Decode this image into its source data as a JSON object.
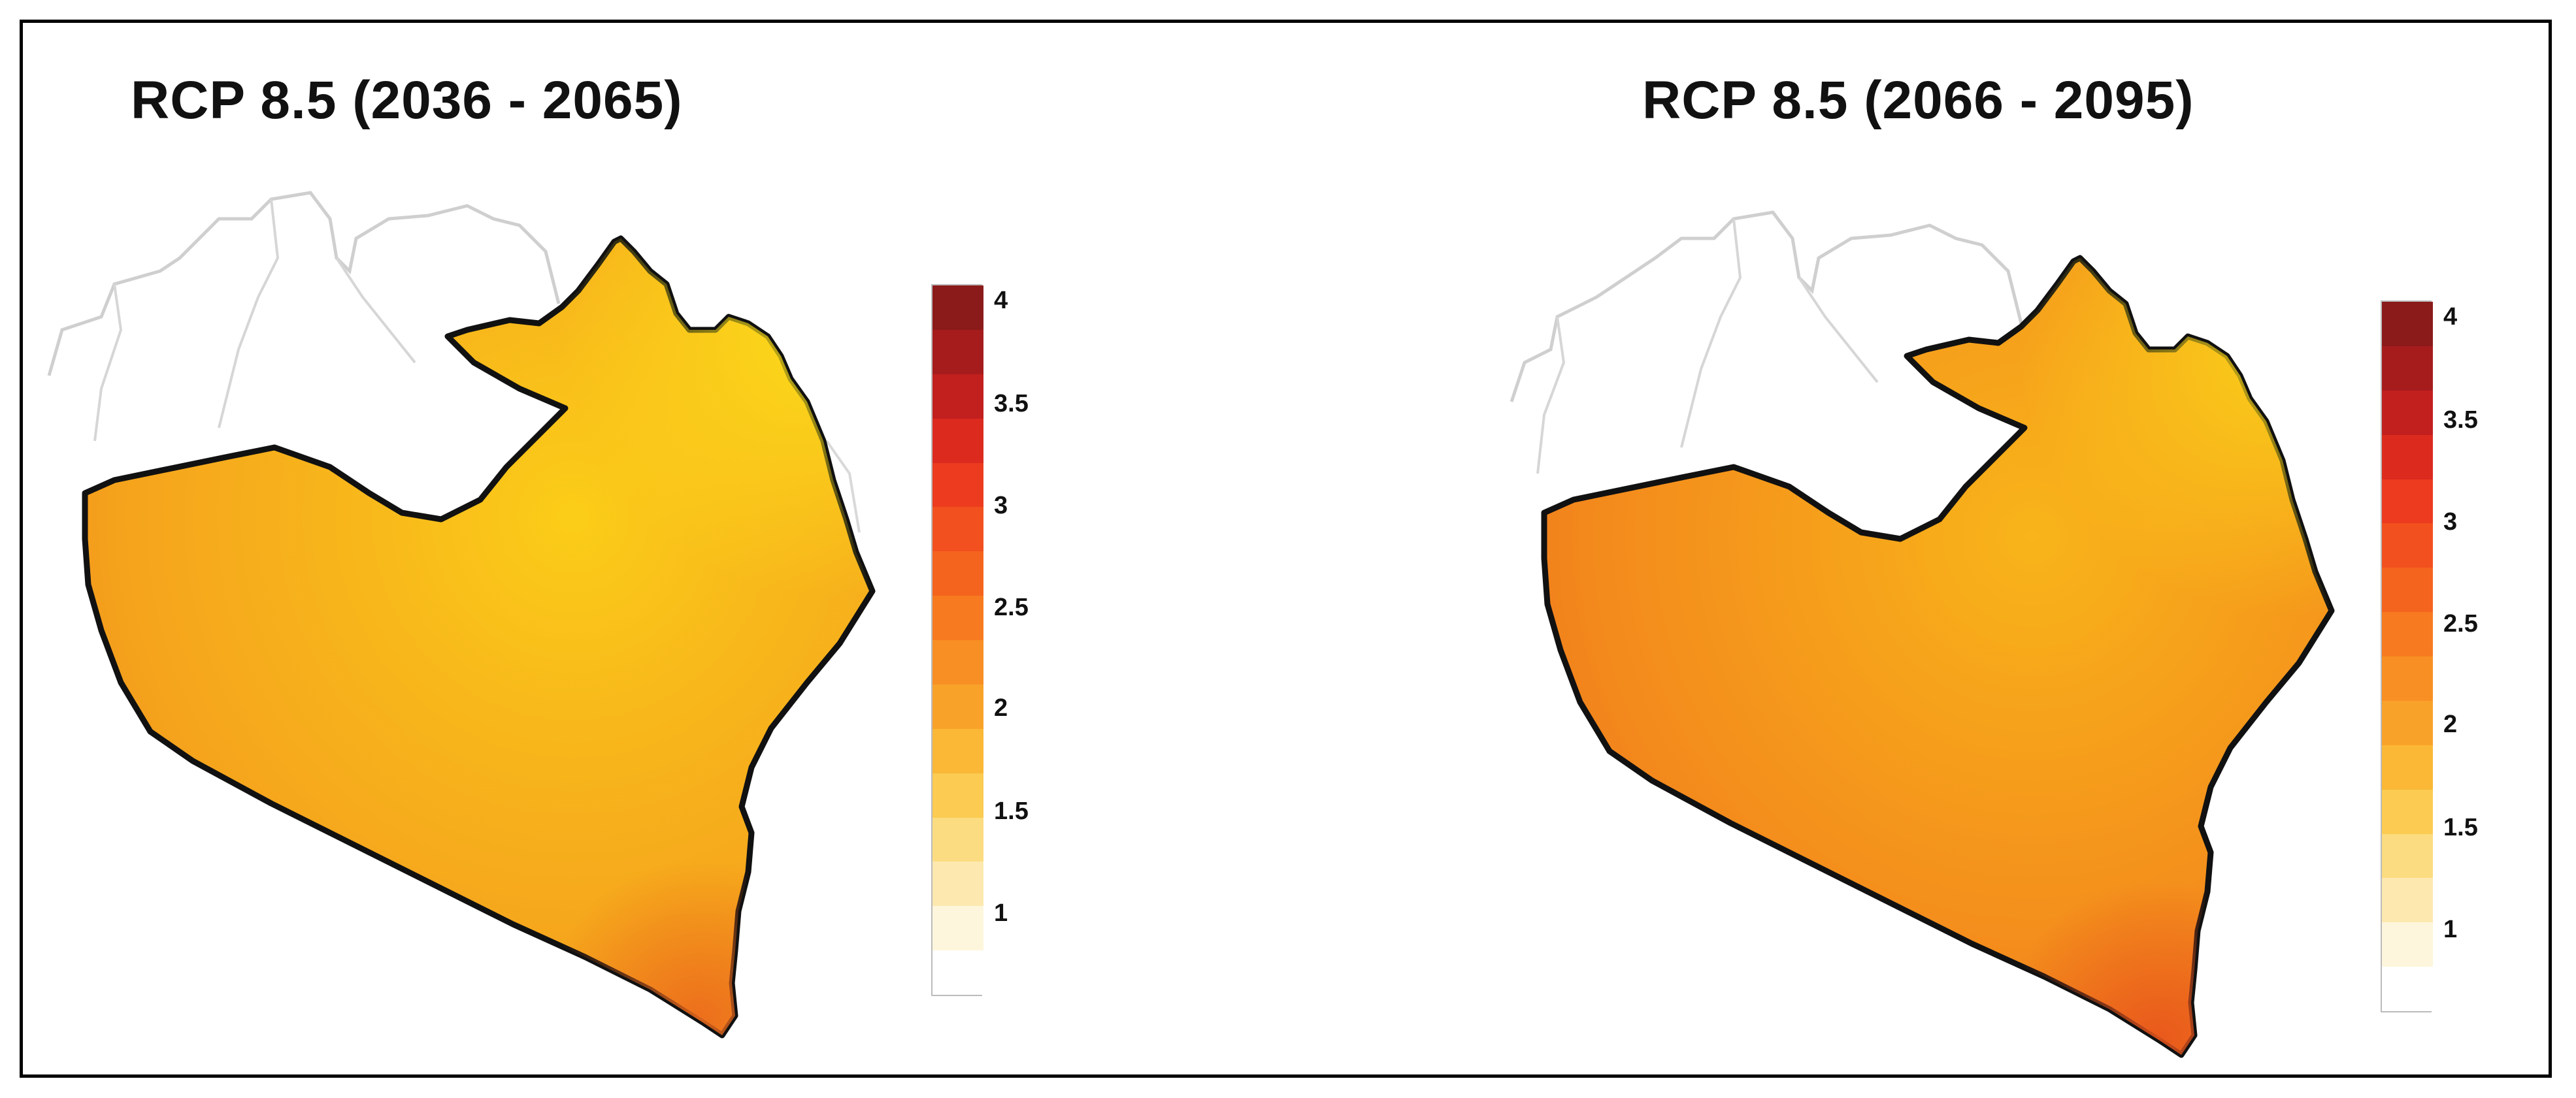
{
  "figure": {
    "panels": [
      {
        "title": "RCP 8.5 (2036 - 2065)",
        "legend_ticks": [
          "4",
          "3.5",
          "3",
          "2.5",
          "2",
          "1.5",
          "1"
        ]
      },
      {
        "title": "RCP 8.5 (2066 - 2095)",
        "legend_ticks": [
          "4",
          "3.5",
          "3",
          "2.5",
          "2",
          "1.5",
          "1"
        ]
      }
    ],
    "legend_colors": [
      "#8b1a1a",
      "#a61c1c",
      "#c21f1f",
      "#dc2a1f",
      "#ec3b1e",
      "#f2501e",
      "#f5641e",
      "#f77a20",
      "#f88f24",
      "#f9a22a",
      "#fab836",
      "#fbcb52",
      "#fcdc80",
      "#fde9b0",
      "#fef6dc",
      "#ffffff"
    ],
    "map_fill": {
      "panel_1": {
        "main": "#f6a81c",
        "hot": "#f18a1e",
        "cool": "#fbd21a"
      },
      "panel_2": {
        "main": "#f48f1c",
        "hot": "#ef741d",
        "cool": "#f9c01a"
      }
    }
  }
}
